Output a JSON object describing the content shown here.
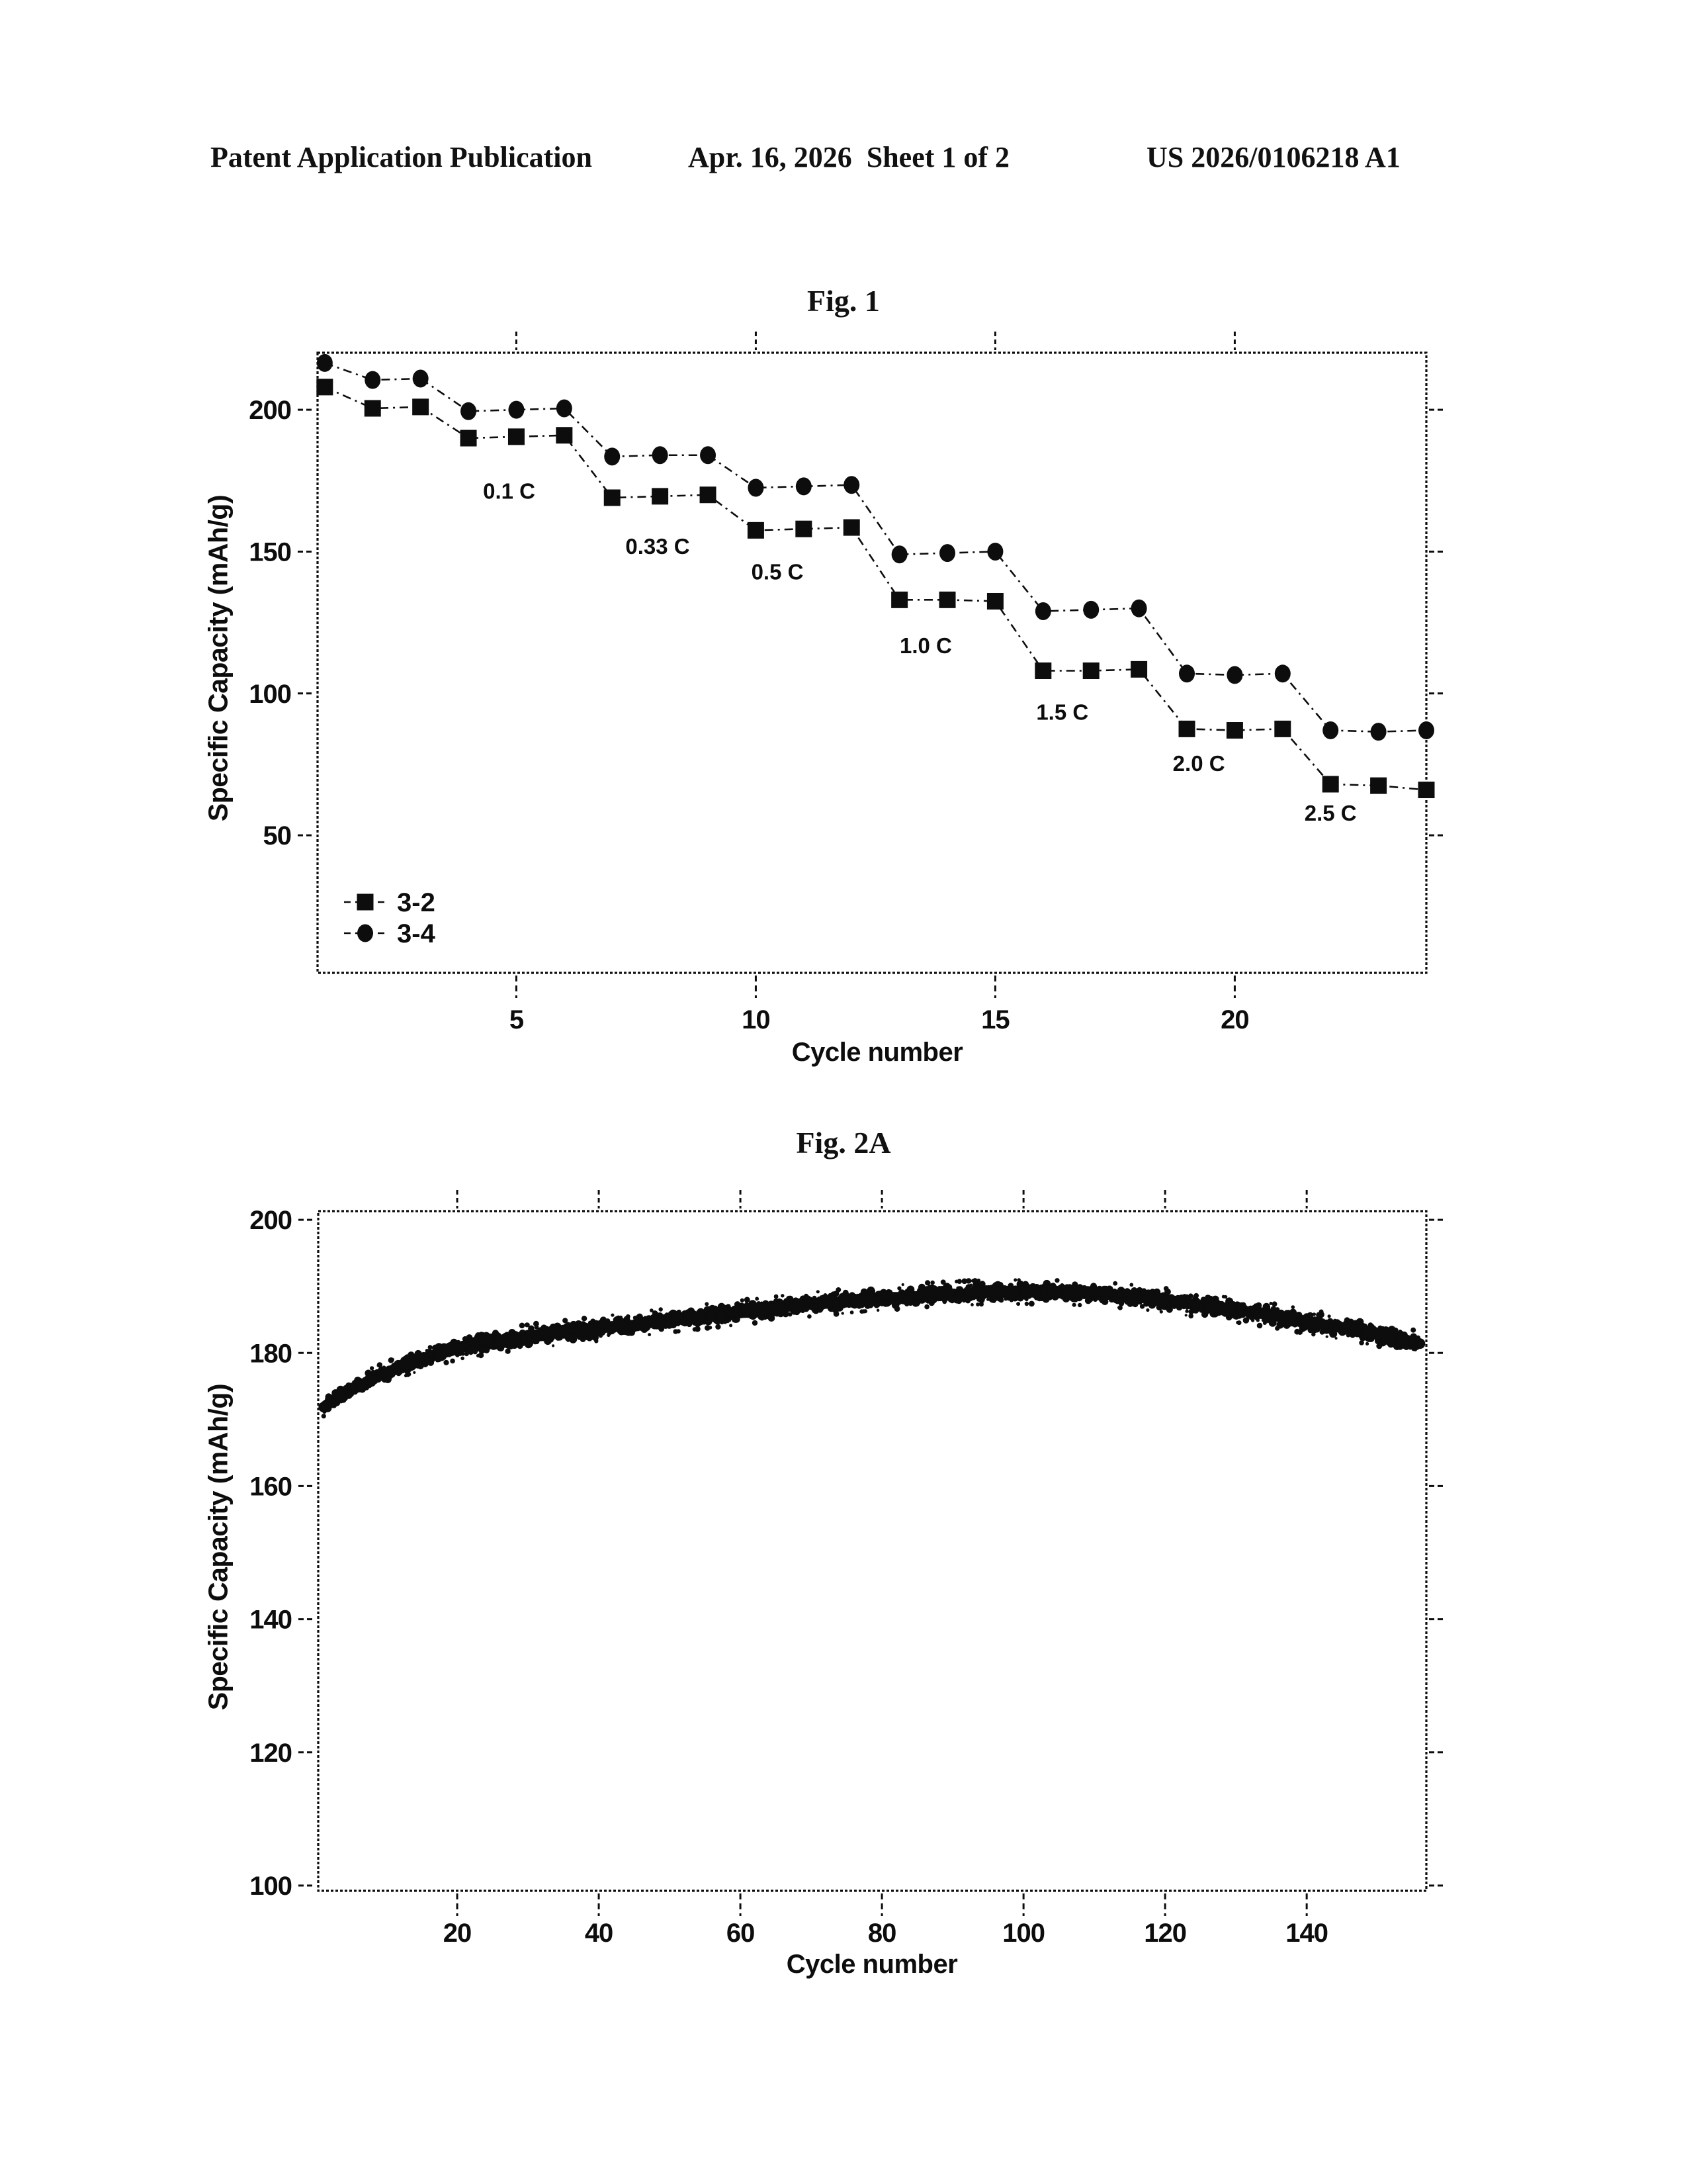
{
  "page": {
    "background": "#ffffff",
    "ink": "#0d0d0d"
  },
  "header": {
    "left": "Patent Application Publication",
    "center": "Apr. 16, 2026  Sheet 1 of 2",
    "right": "US 2026/0106218 A1"
  },
  "chart_data": [
    {
      "type": "line",
      "title": "Fig. 1",
      "xlabel": "Cycle number",
      "ylabel": "Specific Capacity (mAh/g)",
      "xlim": [
        0.85,
        24.0
      ],
      "ylim": [
        1.5,
        220.1
      ],
      "xticks": [
        5,
        10,
        15,
        20
      ],
      "yticks": [
        50,
        100,
        150,
        200
      ],
      "grid": false,
      "legend_position": "lower-left",
      "x": [
        1,
        2,
        3,
        4,
        5,
        6,
        7,
        8,
        9,
        10,
        11,
        12,
        13,
        14,
        15,
        16,
        17,
        18,
        19,
        20,
        21,
        22,
        23,
        24
      ],
      "series": [
        {
          "name": "3-2",
          "marker": "square",
          "values": [
            208,
            200.5,
            201,
            190,
            190.5,
            191,
            169,
            169.5,
            170,
            157.5,
            158,
            158.5,
            133,
            133,
            132.5,
            108,
            108,
            108.5,
            87.5,
            87,
            87.5,
            68,
            67.5,
            66
          ]
        },
        {
          "name": "3-4",
          "marker": "circle",
          "values": [
            216.5,
            210.5,
            211,
            199.5,
            200,
            200.5,
            183.5,
            184,
            184,
            172.5,
            173,
            173.5,
            149,
            149.5,
            150,
            129,
            129.5,
            130,
            107,
            106.5,
            107,
            87,
            86.5,
            87
          ]
        }
      ],
      "annotations": [
        {
          "text": "0.1 C",
          "x": 4.85,
          "y": 171.5
        },
        {
          "text": "0.33 C",
          "x": 7.95,
          "y": 152
        },
        {
          "text": "0.5 C",
          "x": 10.45,
          "y": 143
        },
        {
          "text": "1.0 C",
          "x": 13.55,
          "y": 117
        },
        {
          "text": "1.5 C",
          "x": 16.4,
          "y": 93.5
        },
        {
          "text": "2.0 C",
          "x": 19.25,
          "y": 75.5
        },
        {
          "text": "2.5 C",
          "x": 22.0,
          "y": 58
        }
      ]
    },
    {
      "type": "scatter",
      "title": "Fig. 2A",
      "xlabel": "Cycle number",
      "ylabel": "Specific Capacity (mAh/g)",
      "xlim": [
        0.37,
        156.9
      ],
      "ylim": [
        99.2,
        201.3
      ],
      "xticks": [
        20,
        40,
        60,
        80,
        100,
        120,
        140
      ],
      "yticks": [
        100,
        120,
        140,
        160,
        180,
        200
      ],
      "grid": false,
      "band_halfwidth": 1.4,
      "band": [
        [
          1,
          171.8
        ],
        [
          2,
          172.6
        ],
        [
          3,
          173.3
        ],
        [
          5,
          174.6
        ],
        [
          8,
          176.2
        ],
        [
          12,
          177.9
        ],
        [
          16,
          179.5
        ],
        [
          21,
          181.0
        ],
        [
          26,
          181.9
        ],
        [
          32,
          182.7
        ],
        [
          39,
          183.5
        ],
        [
          46,
          184.4
        ],
        [
          54,
          185.4
        ],
        [
          62,
          186.3
        ],
        [
          70,
          187.3
        ],
        [
          78,
          188.1
        ],
        [
          86,
          188.7
        ],
        [
          94,
          189.1
        ],
        [
          102,
          189.2
        ],
        [
          110,
          188.9
        ],
        [
          118,
          188.2
        ],
        [
          126,
          187.0
        ],
        [
          134,
          185.8
        ],
        [
          142,
          184.4
        ],
        [
          150,
          182.9
        ],
        [
          156,
          181.4
        ]
      ]
    }
  ]
}
